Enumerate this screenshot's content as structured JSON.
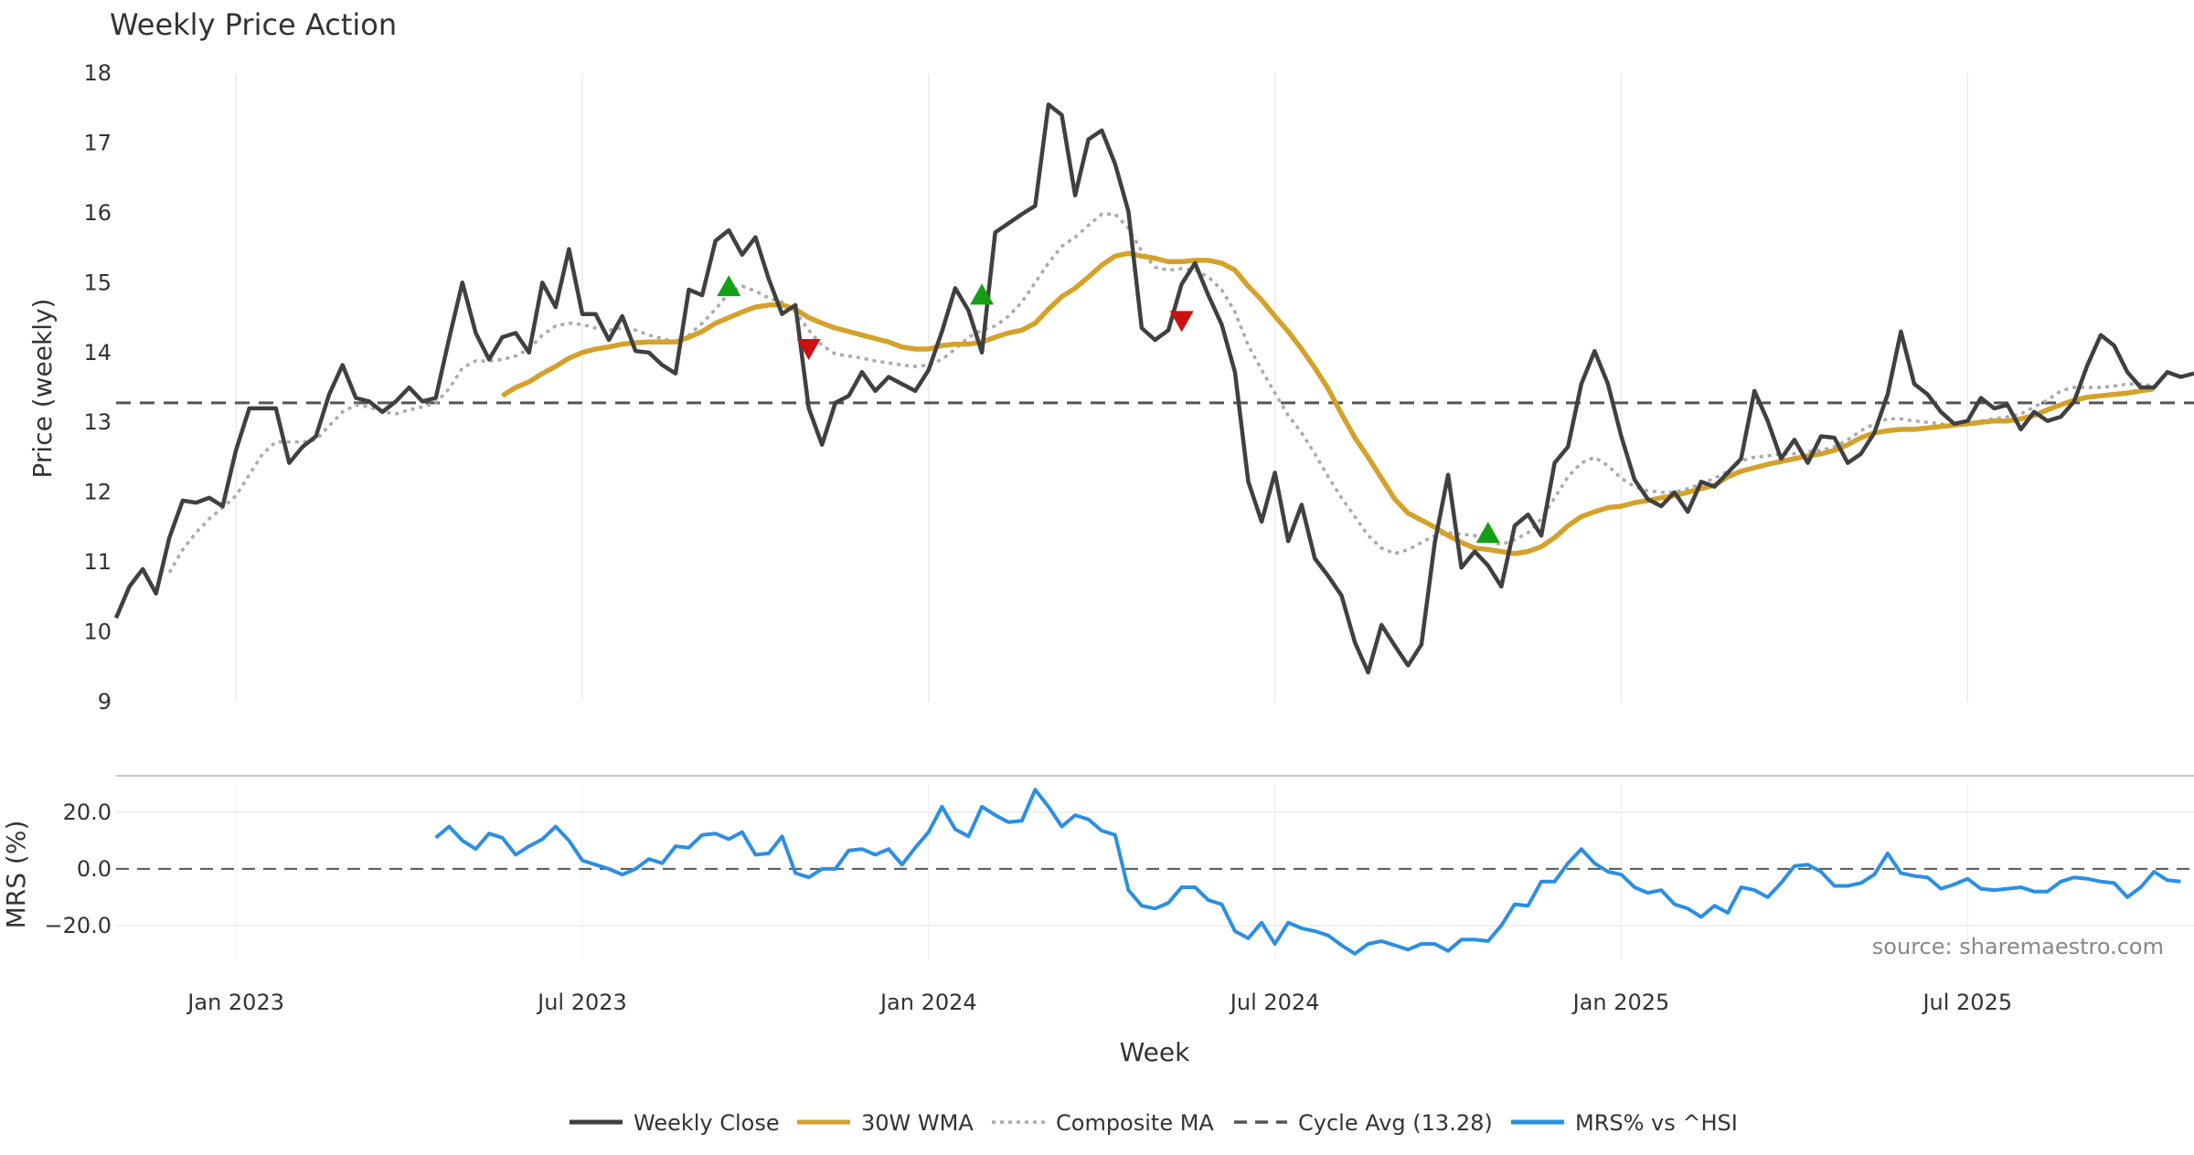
{
  "chart_data": {
    "type": "line",
    "title": "Weekly Price Action",
    "xlabel": "Week",
    "source": "source: sharemaestro.com",
    "x_tick_labels": [
      "Jan 2023",
      "Jul 2023",
      "Jan 2024",
      "Jul 2024",
      "Jan 2025",
      "Jul 2025"
    ],
    "x_tick_weeks": [
      9,
      35,
      61,
      87,
      113,
      139
    ],
    "x_range_weeks": [
      0,
      156
    ],
    "colors": {
      "close": "#404040",
      "wma": "#d4a22a",
      "composite": "#aaaaaa",
      "cycle": "#555555",
      "mrs": "#2b8fe3",
      "buy": "#14a014",
      "sell": "#cc1111"
    },
    "price_panel": {
      "ylabel": "Price (weekly)",
      "ylim": [
        9,
        18
      ],
      "yticks": [
        "9",
        "10",
        "11",
        "12",
        "13",
        "14",
        "15",
        "16",
        "17",
        "18"
      ],
      "cycle_avg": 13.28,
      "series": {
        "close": [
          10.2,
          10.65,
          10.9,
          10.55,
          11.35,
          11.88,
          11.85,
          11.92,
          11.8,
          12.6,
          13.2,
          13.2,
          13.2,
          12.42,
          12.65,
          12.8,
          13.4,
          13.82,
          13.35,
          13.3,
          13.15,
          13.3,
          13.5,
          13.3,
          13.35,
          14.2,
          15.0,
          14.28,
          13.9,
          14.22,
          14.28,
          14.0,
          15.0,
          14.65,
          15.48,
          14.55,
          14.55,
          14.18,
          14.52,
          14.02,
          14.0,
          13.82,
          13.7,
          14.9,
          14.82,
          15.6,
          15.75,
          15.4,
          15.65,
          15.05,
          14.55,
          14.68,
          13.2,
          12.68,
          13.28,
          13.38,
          13.72,
          13.45,
          13.65,
          13.55,
          13.45,
          13.75,
          14.3,
          14.92,
          14.6,
          14.0,
          15.72,
          15.85,
          15.98,
          16.1,
          17.55,
          17.4,
          16.25,
          17.05,
          17.18,
          16.7,
          16.02,
          14.35,
          14.18,
          14.32,
          14.98,
          15.28,
          14.82,
          14.4,
          13.72,
          12.15,
          11.58,
          12.28,
          11.3,
          11.82,
          11.05,
          10.8,
          10.52,
          9.85,
          9.42,
          10.1,
          9.8,
          9.52,
          9.82,
          11.28,
          12.25,
          10.92,
          11.15,
          10.95,
          10.65,
          11.52,
          11.68,
          11.38,
          12.42,
          12.65,
          13.55,
          14.02,
          13.55,
          12.8,
          12.18,
          11.9,
          11.8,
          12.0,
          11.72,
          12.15,
          12.08,
          12.28,
          12.48,
          13.45,
          13.02,
          12.48,
          12.75,
          12.42,
          12.8,
          12.78,
          12.42,
          12.55,
          12.85,
          13.4,
          14.3,
          13.55,
          13.4,
          13.15,
          12.98,
          13.02,
          13.35,
          13.2,
          13.25,
          12.9,
          13.15,
          13.02,
          13.08,
          13.3,
          13.82,
          14.25,
          14.1,
          13.72,
          13.5,
          13.5,
          13.72,
          13.65,
          13.7
        ],
        "wma": [
          null,
          null,
          null,
          null,
          null,
          null,
          null,
          null,
          null,
          null,
          null,
          null,
          null,
          null,
          null,
          null,
          null,
          null,
          null,
          null,
          null,
          null,
          null,
          null,
          null,
          null,
          null,
          null,
          null,
          13.38,
          13.5,
          13.58,
          13.7,
          13.8,
          13.92,
          14.0,
          14.05,
          14.08,
          14.12,
          14.14,
          14.15,
          14.15,
          14.15,
          14.22,
          14.3,
          14.42,
          14.5,
          14.58,
          14.65,
          14.68,
          14.68,
          14.62,
          14.5,
          14.42,
          14.35,
          14.3,
          14.25,
          14.2,
          14.15,
          14.08,
          14.05,
          14.05,
          14.1,
          14.12,
          14.12,
          14.15,
          14.22,
          14.28,
          14.32,
          14.42,
          14.62,
          14.8,
          14.92,
          15.08,
          15.25,
          15.38,
          15.42,
          15.38,
          15.35,
          15.3,
          15.3,
          15.32,
          15.32,
          15.28,
          15.18,
          14.95,
          14.75,
          14.52,
          14.3,
          14.05,
          13.78,
          13.48,
          13.12,
          12.78,
          12.5,
          12.2,
          11.9,
          11.7,
          11.6,
          11.5,
          11.38,
          11.28,
          11.2,
          11.18,
          11.15,
          11.12,
          11.15,
          11.22,
          11.35,
          11.52,
          11.65,
          11.72,
          11.78,
          11.8,
          11.85,
          11.88,
          11.92,
          11.95,
          12.0,
          12.05,
          12.1,
          12.22,
          12.3,
          12.35,
          12.4,
          12.44,
          12.48,
          12.52,
          12.55,
          12.6,
          12.68,
          12.78,
          12.85,
          12.88,
          12.9,
          12.9,
          12.92,
          12.94,
          12.96,
          12.98,
          13.0,
          13.02,
          13.02,
          13.05,
          13.1,
          13.18,
          13.25,
          13.32,
          13.36,
          13.38,
          13.4,
          13.42,
          13.45,
          13.48
        ],
        "composite": [
          null,
          null,
          null,
          null,
          10.85,
          11.18,
          11.42,
          11.62,
          11.78,
          11.95,
          12.25,
          12.55,
          12.72,
          12.72,
          12.72,
          12.75,
          12.95,
          13.15,
          13.25,
          13.22,
          13.15,
          13.12,
          13.18,
          13.22,
          13.28,
          13.48,
          13.78,
          13.88,
          13.88,
          13.9,
          13.95,
          14.05,
          14.25,
          14.38,
          14.42,
          14.4,
          14.35,
          14.32,
          14.35,
          14.32,
          14.25,
          14.2,
          14.15,
          14.25,
          14.42,
          14.62,
          14.85,
          14.95,
          14.88,
          14.78,
          14.72,
          14.58,
          14.32,
          14.1,
          13.98,
          13.95,
          13.92,
          13.88,
          13.85,
          13.82,
          13.8,
          13.82,
          13.9,
          14.05,
          14.22,
          14.32,
          14.38,
          14.52,
          14.72,
          15.0,
          15.28,
          15.52,
          15.65,
          15.82,
          15.98,
          15.98,
          15.78,
          15.45,
          15.22,
          15.18,
          15.2,
          15.18,
          15.08,
          14.9,
          14.58,
          14.1,
          13.75,
          13.42,
          13.1,
          12.85,
          12.55,
          12.22,
          11.92,
          11.65,
          11.38,
          11.2,
          11.12,
          11.18,
          11.28,
          11.38,
          11.42,
          11.4,
          11.38,
          11.3,
          11.25,
          11.32,
          11.42,
          11.62,
          11.92,
          12.22,
          12.42,
          12.5,
          12.38,
          12.2,
          12.08,
          12.02,
          12.0,
          12.0,
          12.05,
          12.12,
          12.2,
          12.3,
          12.45,
          12.5,
          12.52,
          12.55,
          12.55,
          12.58,
          12.6,
          12.65,
          12.75,
          12.88,
          12.98,
          13.05,
          13.05,
          13.02,
          13.0,
          12.98,
          12.95,
          12.98,
          13.02,
          13.05,
          13.08,
          13.12,
          13.22,
          13.32,
          13.45,
          13.5,
          13.5,
          13.5,
          13.52,
          13.55,
          13.55,
          13.52
        ],
        "buy_signals": [
          {
            "week": 46,
            "value": 14.95
          },
          {
            "week": 65,
            "value": 14.83
          },
          {
            "week": 103,
            "value": 11.42
          }
        ],
        "sell_signals": [
          {
            "week": 52,
            "value": 14.05
          },
          {
            "week": 80,
            "value": 14.45
          }
        ]
      }
    },
    "mrs_panel": {
      "ylabel": "MRS (%)",
      "ylim": [
        -32,
        30
      ],
      "yticks": [
        "20.0",
        "0.0",
        "−20.0"
      ],
      "ytick_values": [
        20,
        0,
        -20
      ],
      "reference": 0,
      "mrs": [
        null,
        null,
        null,
        null,
        null,
        null,
        null,
        null,
        null,
        null,
        null,
        null,
        null,
        null,
        null,
        null,
        null,
        null,
        null,
        null,
        null,
        null,
        null,
        null,
        11,
        15,
        10,
        7,
        12.5,
        11,
        5,
        8,
        10.5,
        15,
        10,
        3,
        1.5,
        0,
        -2,
        0,
        3.5,
        2,
        8,
        7.5,
        12,
        12.5,
        10.5,
        13,
        5,
        5.5,
        11.5,
        -1.5,
        -3,
        0,
        0,
        6.5,
        7,
        5,
        7,
        1.5,
        7.5,
        13,
        22,
        14,
        11.5,
        22,
        19,
        16.5,
        17,
        28,
        22,
        15,
        19,
        17.5,
        13.5,
        12,
        -7.5,
        -13,
        -14,
        -12,
        -6.5,
        -6.5,
        -11,
        -12.5,
        -22,
        -24.5,
        -19,
        -26.5,
        -19,
        -21,
        -22,
        -23.5,
        -27,
        -30,
        -26.5,
        -25.5,
        -27,
        -28.5,
        -26.5,
        -26.5,
        -29,
        -25,
        -25,
        -25.5,
        -20,
        -12.5,
        -13,
        -4.5,
        -4.5,
        2,
        7,
        2,
        -1,
        -2,
        -6.5,
        -8.5,
        -7.5,
        -12.5,
        -14,
        -17,
        -13,
        -15.5,
        -6.5,
        -7.5,
        -10,
        -5,
        1,
        1.5,
        -1,
        -6,
        -6,
        -5,
        -2,
        5.5,
        -1.5,
        -2.5,
        -3,
        -7,
        -5.5,
        -3.5,
        -7,
        -7.5,
        -7,
        -6.5,
        -8,
        -8,
        -4.5,
        -3,
        -3.5,
        -4.5,
        -5,
        -10,
        -6.5,
        -1,
        -4,
        -4.5
      ]
    },
    "legend": [
      {
        "label": "Weekly Close",
        "style": "solid",
        "color": "#404040"
      },
      {
        "label": "30W WMA",
        "style": "solid",
        "color": "#d4a22a"
      },
      {
        "label": "Composite MA",
        "style": "dotted",
        "color": "#aaaaaa"
      },
      {
        "label": "Cycle Avg (13.28)",
        "style": "dashed",
        "color": "#555555"
      },
      {
        "label": "MRS% vs ^HSI",
        "style": "solid",
        "color": "#2b8fe3"
      }
    ]
  }
}
